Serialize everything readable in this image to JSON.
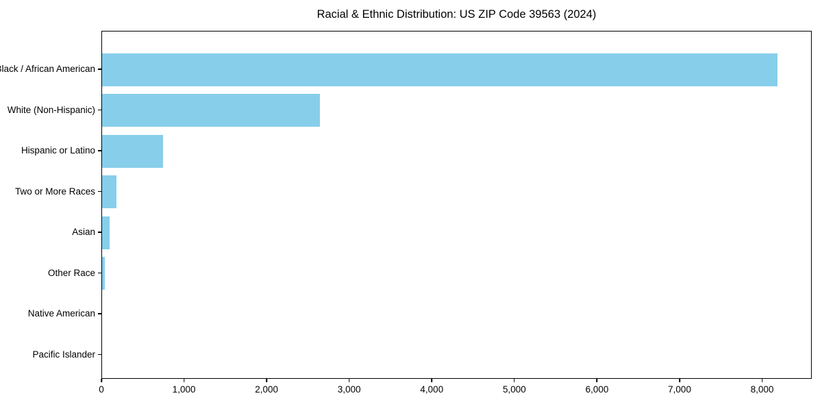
{
  "title": "Racial & Ethnic Distribution: US ZIP Code 39563 (2024)",
  "colors": {
    "bar": "#87CEEB",
    "axis": "#000000",
    "background": "#ffffff",
    "text": "#000000"
  },
  "chart_data": {
    "type": "bar",
    "orientation": "horizontal",
    "title": "Racial & Ethnic Distribution: US ZIP Code 39563 (2024)",
    "xlabel": "",
    "ylabel": "",
    "categories": [
      "Black / African American",
      "White (Non-Hispanic)",
      "Hispanic or Latino",
      "Two or More Races",
      "Asian",
      "Other Race",
      "Native American",
      "Pacific Islander"
    ],
    "values": [
      8190,
      2640,
      740,
      175,
      95,
      35,
      0,
      0
    ],
    "bar_color": "#87CEEB",
    "xlim": [
      0,
      8600
    ],
    "x_ticks": [
      0,
      1000,
      2000,
      3000,
      4000,
      5000,
      6000,
      7000,
      8000
    ],
    "x_tick_labels": [
      "0",
      "1,000",
      "2,000",
      "3,000",
      "4,000",
      "5,000",
      "6,000",
      "7,000",
      "8,000"
    ],
    "grid": false,
    "legend": "none"
  }
}
